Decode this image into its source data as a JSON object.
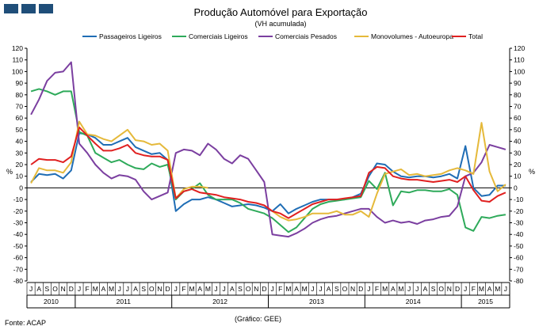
{
  "chart_data": {
    "type": "line",
    "title": "Produção Automóvel para Exportação",
    "subtitle": "(VH acumulada)",
    "ylabel_left": "%",
    "ylabel_right": "%",
    "ylim": [
      -80,
      120
    ],
    "y_ticks": [
      -80,
      -70,
      -60,
      -50,
      -40,
      -30,
      -20,
      -10,
      0,
      10,
      20,
      30,
      40,
      50,
      60,
      70,
      80,
      90,
      100,
      110,
      120
    ],
    "grid": false,
    "legend_position": "top",
    "month_labels": [
      "J",
      "A",
      "S",
      "O",
      "N",
      "D",
      "J",
      "F",
      "M",
      "A",
      "M",
      "J",
      "J",
      "A",
      "S",
      "O",
      "N",
      "D",
      "J",
      "F",
      "M",
      "A",
      "M",
      "J",
      "J",
      "A",
      "S",
      "O",
      "N",
      "D",
      "J",
      "F",
      "M",
      "A",
      "M",
      "J",
      "J",
      "A",
      "S",
      "O",
      "N",
      "D",
      "J",
      "F",
      "M",
      "A",
      "M",
      "J",
      "J",
      "A",
      "S",
      "O",
      "N",
      "D",
      "J",
      "F",
      "M",
      "A",
      "M",
      "J"
    ],
    "year_labels": [
      {
        "label": "2010",
        "start": 0,
        "end": 6
      },
      {
        "label": "2011",
        "start": 6,
        "end": 18
      },
      {
        "label": "2012",
        "start": 18,
        "end": 30
      },
      {
        "label": "2013",
        "start": 30,
        "end": 42
      },
      {
        "label": "2014",
        "start": 42,
        "end": 54
      },
      {
        "label": "2015",
        "start": 54,
        "end": 60
      }
    ],
    "series": [
      {
        "name": "Passageiros Ligeiros",
        "color": "#1f6db5",
        "values": [
          5,
          12,
          11,
          12,
          8,
          15,
          47,
          46,
          43,
          37,
          37,
          40,
          43,
          35,
          32,
          29,
          30,
          24,
          -20,
          -14,
          -10,
          -10,
          -8,
          -10,
          -13,
          -16,
          -15,
          -14,
          -15,
          -17,
          -20,
          -14,
          -22,
          -18,
          -15,
          -12,
          -10,
          -10,
          -10,
          -10,
          -8,
          -5,
          10,
          21,
          20,
          14,
          10,
          9,
          10,
          10,
          9,
          10,
          12,
          8,
          36,
          0,
          -7,
          -6,
          2,
          2
        ]
      },
      {
        "name": "Comerciais Ligeiros",
        "color": "#2eaa5a",
        "values": [
          83,
          85,
          83,
          80,
          83,
          83,
          48,
          45,
          30,
          26,
          22,
          24,
          20,
          17,
          16,
          21,
          18,
          20,
          -10,
          -3,
          -1,
          4,
          -6,
          -10,
          -10,
          -10,
          -13,
          -18,
          -20,
          -22,
          -26,
          -32,
          -38,
          -34,
          -26,
          -18,
          -14,
          -12,
          -11,
          -10,
          -9,
          -8,
          6,
          -1,
          13,
          -15,
          -3,
          -4,
          -2,
          -2,
          -3,
          -3,
          -1,
          -6,
          -34,
          -37,
          -25,
          -26,
          -24,
          -23
        ]
      },
      {
        "name": "Comerciais Pesados",
        "color": "#7b3fa0",
        "values": [
          63,
          76,
          92,
          99,
          100,
          108,
          38,
          30,
          20,
          13,
          8,
          11,
          10,
          7,
          -3,
          -10,
          -7,
          -4,
          30,
          33,
          32,
          28,
          38,
          33,
          25,
          21,
          28,
          25,
          15,
          5,
          -40,
          -41,
          -42,
          -39,
          -35,
          -30,
          -27,
          -25,
          -24,
          -22,
          -20,
          -18,
          -18,
          -25,
          -30,
          -28,
          -30,
          -29,
          -31,
          -28,
          -27,
          -25,
          -24,
          -16,
          10,
          13,
          22,
          37,
          35,
          33
        ]
      },
      {
        "name": "Monovolumes - Autoeuropa",
        "color": "#e5b93a",
        "values": [
          4,
          17,
          15,
          15,
          13,
          22,
          57,
          46,
          45,
          42,
          40,
          45,
          50,
          41,
          40,
          37,
          38,
          32,
          -9,
          -1,
          1,
          1,
          0,
          null,
          null,
          null,
          null,
          null,
          null,
          null,
          -20,
          -25,
          -28,
          -27,
          -25,
          -22,
          -22,
          -22,
          -20,
          -23,
          -23,
          -20,
          -25,
          -5,
          12,
          14,
          16,
          11,
          12,
          10,
          11,
          12,
          15,
          17,
          15,
          12,
          56,
          14,
          -3,
          3
        ]
      },
      {
        "name": "Total",
        "color": "#e02020",
        "values": [
          20,
          25,
          24,
          24,
          22,
          27,
          52,
          45,
          38,
          32,
          32,
          34,
          37,
          30,
          28,
          27,
          27,
          24,
          -9,
          -3,
          -1,
          -4,
          -5,
          -6,
          -8,
          -9,
          -10,
          -12,
          -13,
          -15,
          -20,
          -22,
          -26,
          -22,
          -18,
          -14,
          -12,
          -10,
          -10,
          -9,
          -8,
          -7,
          13,
          18,
          17,
          10,
          8,
          7,
          7,
          6,
          5,
          6,
          7,
          5,
          10,
          -2,
          -11,
          -12,
          -7,
          -4
        ]
      }
    ]
  },
  "footer": {
    "source": "Fonte: ACAP",
    "credit": "(Gráfico: GEE)"
  }
}
